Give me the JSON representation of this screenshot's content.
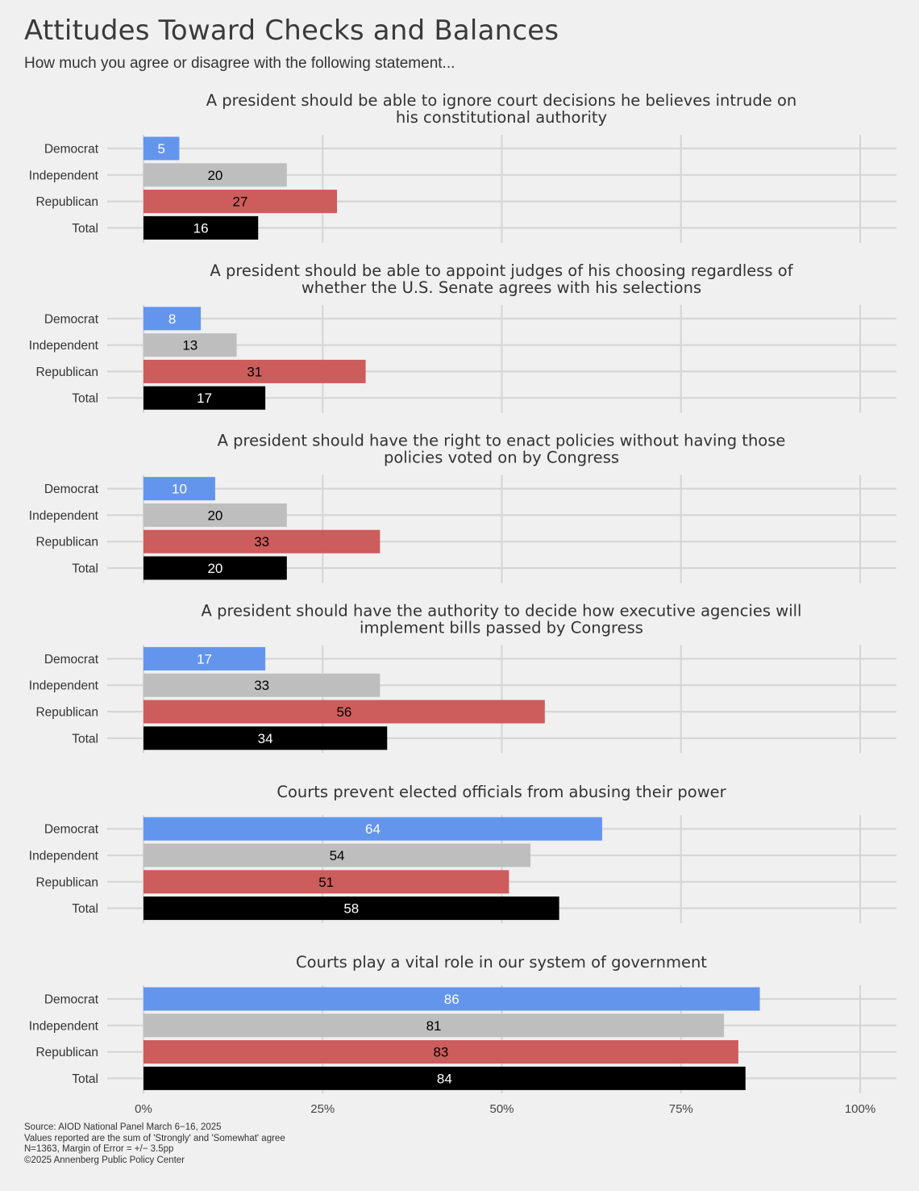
{
  "title": "Attitudes Toward Checks and Balances",
  "subtitle": "How much you agree or disagree with the following statement...",
  "footer": [
    "Source: AIOD National Panel March 6−16, 2025",
    "Values reported are the sum of 'Strongly' and 'Somewhat' agree",
    "N=1363, Margin of Error = +/− 3.5pp",
    "©2025 Annenberg Public Policy Center"
  ],
  "chart_data": {
    "type": "bar",
    "orientation": "horizontal",
    "categories": [
      "Democrat",
      "Independent",
      "Republican",
      "Total"
    ],
    "category_colors": {
      "Democrat": "#6495ed",
      "Independent": "#bebebe",
      "Republican": "#cd5c5c",
      "Total": "#000000"
    },
    "label_colors": {
      "Democrat": "#ffffff",
      "Independent": "#000000",
      "Republican": "#000000",
      "Total": "#ffffff"
    },
    "xlim": [
      0,
      100
    ],
    "x_ticks": [
      0,
      25,
      50,
      75,
      100
    ],
    "x_tick_labels": [
      "0%",
      "25%",
      "50%",
      "75%",
      "100%"
    ],
    "grid": true,
    "panels": [
      {
        "title": [
          "A president should be able to ignore court decisions he believes intrude on",
          "his constitutional authority"
        ],
        "values": [
          5,
          20,
          27,
          16
        ]
      },
      {
        "title": [
          "A president should be able to appoint judges of his choosing regardless of",
          "whether the U.S. Senate agrees with his selections"
        ],
        "values": [
          8,
          13,
          31,
          17
        ]
      },
      {
        "title": [
          "A president should have the right to enact policies without having those",
          "policies voted on by Congress"
        ],
        "values": [
          10,
          20,
          33,
          20
        ]
      },
      {
        "title": [
          "A president should have the authority to decide how executive agencies will",
          "implement bills passed by Congress"
        ],
        "values": [
          17,
          33,
          56,
          34
        ]
      },
      {
        "title": [
          "Courts prevent elected officials from abusing their power"
        ],
        "values": [
          64,
          54,
          51,
          58
        ]
      },
      {
        "title": [
          "Courts play a vital role in our system of government"
        ],
        "values": [
          86,
          81,
          83,
          84
        ]
      }
    ]
  }
}
